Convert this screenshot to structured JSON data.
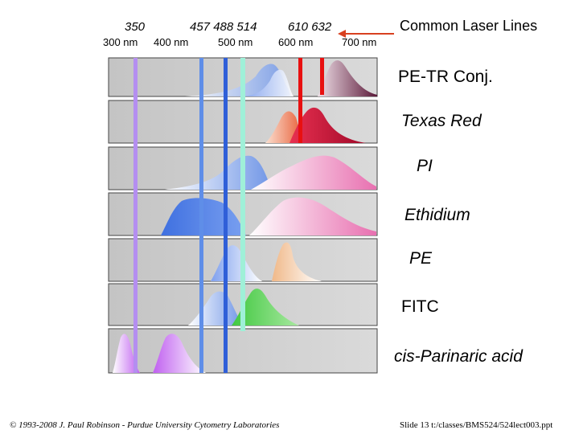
{
  "laser_lines": {
    "title": "Common Laser Lines",
    "left_label": "350",
    "group_label": "457 488 514",
    "right_label": "610 632"
  },
  "wavelength_axis": [
    "300 nm",
    "400 nm",
    "500 nm",
    "600 nm",
    "700 nm"
  ],
  "dyes": [
    "PE-TR Conj.",
    "Texas Red",
    "PI",
    "Ethidium",
    "PE",
    "FITC",
    "cis-Parinaric acid"
  ],
  "footer": {
    "copyright": "© 1993-2008 J. Paul Robinson - Purdue University Cytometry Laboratories",
    "slide": "Slide 13  t:/classes/BMS524/524lect003.ppt"
  },
  "colors": {
    "uv_line": "#b48ef0",
    "line_457": "#5f8ee8",
    "line_488": "#2f5fd8",
    "line_514": "#9ff0d8",
    "line_red": "#e81010",
    "arrow": "#d84020"
  }
}
